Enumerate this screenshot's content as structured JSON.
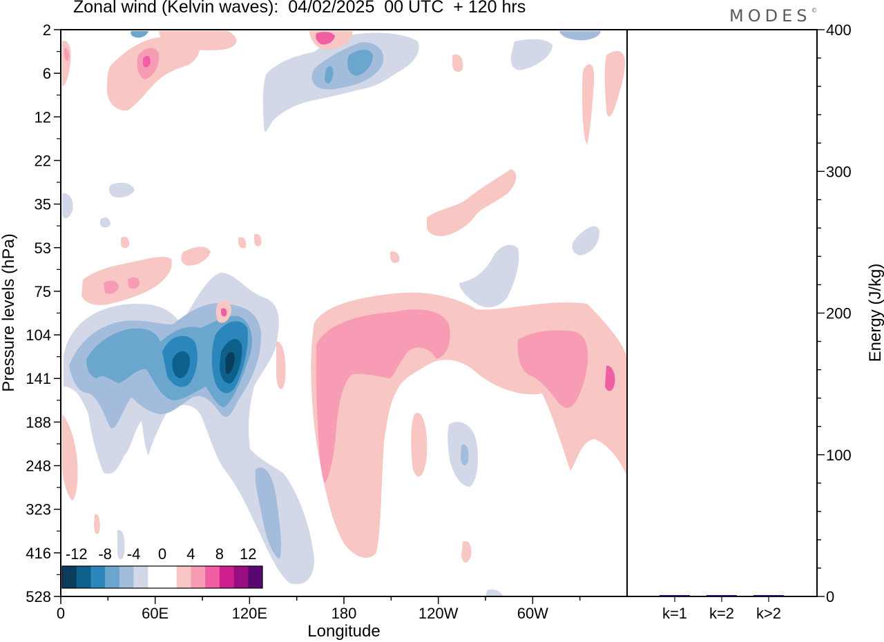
{
  "title": "Zonal wind (Kelvin waves):  04/02/2025  00 UTC  + 120 hrs",
  "logo": "MODES",
  "logo_mark": "©",
  "chart_data": [
    {
      "type": "heatmap",
      "xlabel": "Longitude",
      "ylabel": "Pressure levels (hPa)",
      "x_ticks": [
        "0",
        "60E",
        "120E",
        "180",
        "120W",
        "60W"
      ],
      "x_tick_degrees": [
        0,
        60,
        120,
        180,
        240,
        300
      ],
      "xlim": [
        0,
        360
      ],
      "y_ticks": [
        "2",
        "6",
        "12",
        "22",
        "35",
        "53",
        "75",
        "104",
        "141",
        "188",
        "248",
        "323",
        "416",
        "528"
      ],
      "y_scale": "pressure levels, top to bottom",
      "colorbar": {
        "labels": [
          "-12",
          "-8",
          "-4",
          "0",
          "4",
          "8",
          "12"
        ],
        "colors": [
          "#0b3d5c",
          "#0d5f8c",
          "#2b86bb",
          "#6ba6cf",
          "#a3bcdb",
          "#d2d8e8",
          "#ffffff",
          "#ffffff",
          "#f8c6c3",
          "#f89bb4",
          "#f05fa3",
          "#cf1f8f",
          "#9a0d81",
          "#5a0870"
        ]
      },
      "structures": [
        {
          "sign": "negative",
          "lon": [
            10,
            150
          ],
          "levels": "75-323",
          "peak": -14,
          "center": [
            108,
            "141"
          ]
        },
        {
          "sign": "negative",
          "lon": [
            120,
            160
          ],
          "levels": "248-528",
          "peak": -6
        },
        {
          "sign": "positive",
          "lon": [
            160,
            360
          ],
          "levels": "75-248",
          "peak": 8,
          "center": [
            190,
            "104"
          ]
        },
        {
          "sign": "positive",
          "lon": [
            160,
            200
          ],
          "levels": "141-416",
          "peak": 6
        },
        {
          "sign": "negative",
          "lon": [
            130,
            230
          ],
          "levels": "2-12",
          "peak": -7,
          "center": [
            190,
            "6"
          ]
        },
        {
          "sign": "positive",
          "lon": [
            30,
            100
          ],
          "levels": "2-12",
          "peak": 9,
          "center": [
            55,
            "6"
          ]
        }
      ]
    },
    {
      "type": "bar",
      "ylabel": "Energy (J/kg)",
      "categories": [
        "k=1",
        "k=2",
        "k>2"
      ],
      "values": [
        0.5,
        0.3,
        0.4
      ],
      "ylim": [
        0,
        400
      ],
      "y_ticks": [
        "0",
        "100",
        "200",
        "300",
        "400"
      ],
      "bar_color": "#1a1a5e"
    }
  ]
}
